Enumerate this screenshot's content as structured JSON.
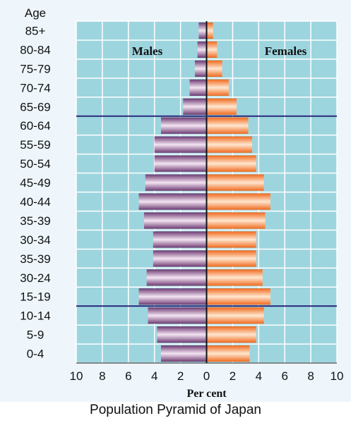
{
  "caption": "Population Pyramid of Japan",
  "chart_data": {
    "type": "bar",
    "orientation": "horizontal-pyramid",
    "age_axis_title": "Age",
    "xlabel": "Per cent",
    "xlim": [
      -10,
      10
    ],
    "x_tick_labels": [
      "10",
      "8",
      "6",
      "4",
      "2",
      "0",
      "2",
      "4",
      "6",
      "8",
      "10"
    ],
    "categories": [
      "85+",
      "80-84",
      "75-79",
      "70-74",
      "65-69",
      "60-64",
      "55-59",
      "50-54",
      "45-49",
      "40-44",
      "35-39",
      "30-34",
      "35-39",
      "30-24",
      "15-19",
      "10-14",
      "5-9",
      "0-4"
    ],
    "series": [
      {
        "name": "Males",
        "values": [
          0.6,
          0.7,
          0.9,
          1.3,
          1.8,
          3.5,
          4.0,
          4.0,
          4.7,
          5.2,
          4.8,
          4.1,
          4.1,
          4.6,
          5.2,
          4.5,
          3.8,
          3.5
        ]
      },
      {
        "name": "Females",
        "values": [
          0.5,
          0.8,
          1.2,
          1.7,
          2.3,
          3.2,
          3.5,
          3.8,
          4.4,
          4.9,
          4.5,
          3.8,
          3.8,
          4.3,
          4.9,
          4.4,
          3.8,
          3.3
        ]
      }
    ],
    "reference_lines_between": [
      [
        "65-69",
        "60-64"
      ],
      [
        "15-19",
        "10-14"
      ]
    ],
    "grid": true,
    "colors": {
      "background": "#9dd5df",
      "grid": "#ffffff",
      "males_dark": "#6e3a72",
      "males_light": "#f3e4f2",
      "females_dark": "#f06a1e",
      "females_light": "#ffe6cf",
      "reference_line": "#2a2a7a",
      "center_line": "#111111"
    }
  }
}
